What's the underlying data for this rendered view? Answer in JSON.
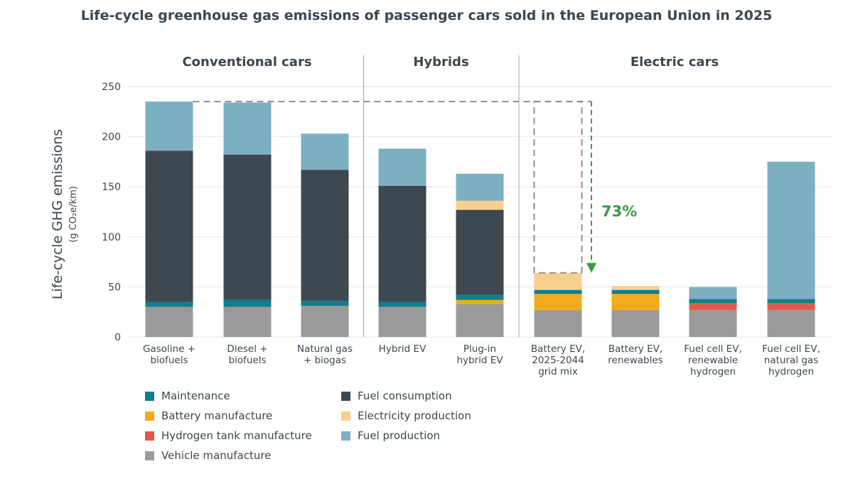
{
  "chart_data": {
    "type": "stacked-bar",
    "title": "Life-cycle greenhouse gas emissions of passenger cars sold in the European Union in 2025",
    "ylabel": "Life-cycle GHG emissions",
    "ylabel_units": "(g CO₂e/km)",
    "ylim": [
      0,
      250
    ],
    "yticks": [
      0,
      50,
      100,
      150,
      200,
      250
    ],
    "groups": [
      {
        "label": "Conventional cars",
        "start": 0,
        "end": 2
      },
      {
        "label": "Hybrids",
        "start": 3,
        "end": 4
      },
      {
        "label": "Electric cars",
        "start": 5,
        "end": 8
      }
    ],
    "categories": [
      [
        "Gasoline +",
        "biofuels"
      ],
      [
        "Diesel +",
        "biofuels"
      ],
      [
        "Natural gas",
        "+ biogas"
      ],
      [
        "Hybrid EV"
      ],
      [
        "Plug-in",
        "hybrid EV"
      ],
      [
        "Battery EV,",
        "2025-2044",
        "grid mix"
      ],
      [
        "Battery EV,",
        "renewables"
      ],
      [
        "Fuel cell EV,",
        "renewable",
        "hydrogen"
      ],
      [
        "Fuel cell EV,",
        "natural gas",
        "hydrogen"
      ]
    ],
    "series": [
      {
        "name": "Vehicle manufacture",
        "color": "#9b9b9b",
        "values": [
          30,
          30,
          31,
          30,
          33,
          27,
          27,
          27,
          27
        ]
      },
      {
        "name": "Hydrogen tank manufacture",
        "color": "#e4574a",
        "values": [
          0,
          0,
          0,
          0,
          0,
          0,
          0,
          7,
          7
        ]
      },
      {
        "name": "Battery manufacture",
        "color": "#f2ac1b",
        "values": [
          0,
          0,
          0,
          0,
          4,
          16,
          16,
          0,
          0
        ]
      },
      {
        "name": "Maintenance",
        "color": "#0e7e8c",
        "values": [
          5,
          7,
          5,
          5,
          5,
          4,
          4,
          4,
          4
        ]
      },
      {
        "name": "Fuel consumption",
        "color": "#3e4851",
        "values": [
          151,
          145,
          131,
          116,
          85,
          0,
          0,
          0,
          0
        ]
      },
      {
        "name": "Electricity production",
        "color": "#f8d08d",
        "values": [
          0,
          0,
          0,
          0,
          9,
          17,
          4,
          0,
          0
        ]
      },
      {
        "name": "Fuel production",
        "color": "#7dafc3",
        "values": [
          49,
          52,
          36,
          37,
          27,
          0,
          0,
          12,
          137
        ]
      }
    ],
    "annotation": {
      "text": "73%",
      "from_value": 235,
      "to_value": 64,
      "color": "#3a9a43"
    }
  },
  "legend": {
    "items": [
      {
        "label": "Maintenance",
        "color": "#0e7e8c"
      },
      {
        "label": "Fuel consumption",
        "color": "#3e4851"
      },
      {
        "label": "Battery manufacture",
        "color": "#f2ac1b"
      },
      {
        "label": "Electricity production",
        "color": "#f8d08d"
      },
      {
        "label": "Hydrogen tank manufacture",
        "color": "#e4574a"
      },
      {
        "label": "Fuel production",
        "color": "#7dafc3"
      },
      {
        "label": "Vehicle manufacture",
        "color": "#9b9b9b"
      }
    ]
  }
}
